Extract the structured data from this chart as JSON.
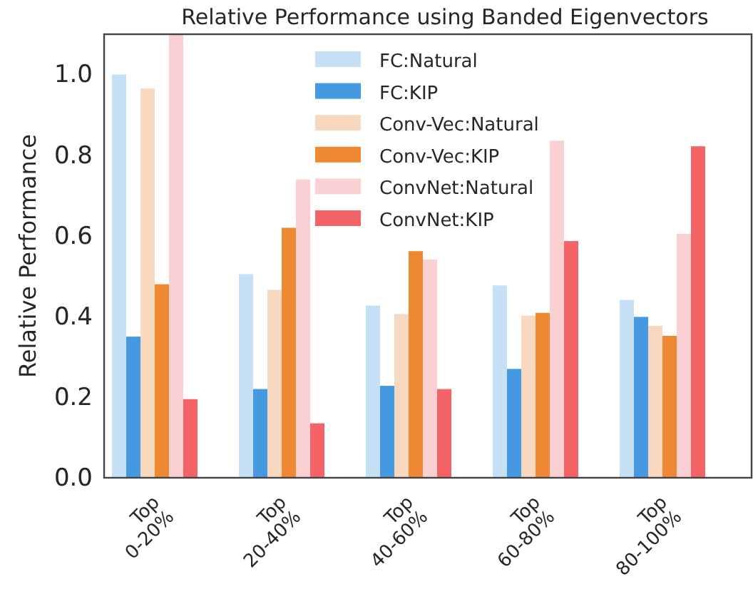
{
  "chart_data": {
    "type": "bar",
    "title": "Relative Performance using Banded Eigenvectors",
    "ylabel": "Relative Performance",
    "categories": [
      "Top\n0-20%",
      "Top\n20-40%",
      "Top\n40-60%",
      "Top\n60-80%",
      "Top\n80-100%"
    ],
    "series": [
      {
        "name": "FC:Natural",
        "color": "#c6e0f5",
        "values": [
          1.0,
          0.505,
          0.427,
          0.477,
          0.441
        ]
      },
      {
        "name": "FC:KIP",
        "color": "#4499e0",
        "values": [
          0.35,
          0.22,
          0.228,
          0.27,
          0.399
        ]
      },
      {
        "name": "Conv-Vec:Natural",
        "color": "#f8d9c0",
        "values": [
          0.965,
          0.466,
          0.406,
          0.402,
          0.377
        ]
      },
      {
        "name": "Conv-Vec:KIP",
        "color": "#ee8833",
        "values": [
          0.48,
          0.62,
          0.562,
          0.409,
          0.352
        ]
      },
      {
        "name": "ConvNet:Natural",
        "color": "#fad0d2",
        "values": [
          1.1,
          0.74,
          0.541,
          0.836,
          0.605
        ]
      },
      {
        "name": "ConvNet:KIP",
        "color": "#f46466",
        "values": [
          0.195,
          0.135,
          0.22,
          0.587,
          0.822
        ]
      }
    ],
    "ylim": [
      0,
      1.1
    ],
    "yticks": [
      {
        "value": 0,
        "label": "0.0"
      },
      {
        "value": 0.2,
        "label": "0.2"
      },
      {
        "value": 0.4,
        "label": "0.4"
      },
      {
        "value": 0.6,
        "label": "0.6"
      },
      {
        "value": 0.8,
        "label": "0.8"
      },
      {
        "value": 1,
        "label": "1.0"
      }
    ],
    "grid": false,
    "legend": "top right"
  }
}
